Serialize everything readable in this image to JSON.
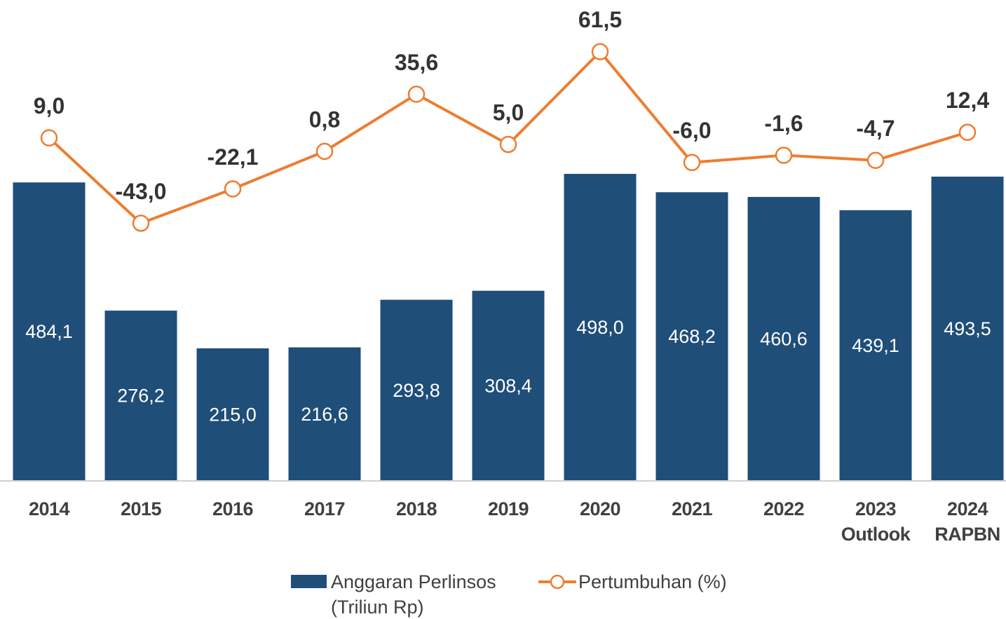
{
  "chart_data": {
    "type": "bar+line",
    "categories": [
      "2014",
      "2015",
      "2016",
      "2017",
      "2018",
      "2019",
      "2020",
      "2021",
      "2022",
      "2023 Outlook",
      "2024 RAPBN"
    ],
    "series": [
      {
        "name": "Anggaran Perlinsos (Triliun Rp)",
        "type": "bar",
        "color": "#1f4e79",
        "values": [
          484.1,
          276.2,
          215.0,
          216.6,
          293.8,
          308.4,
          498.0,
          468.2,
          460.6,
          439.1,
          493.5
        ],
        "value_labels": [
          "484,1",
          "276,2",
          "215,0",
          "216,6",
          "293,8",
          "308,4",
          "498,0",
          "468,2",
          "460,6",
          "439,1",
          "493,5"
        ]
      },
      {
        "name": "Pertumbuhan (%)",
        "type": "line",
        "axis": "y2",
        "color": "#ed7d31",
        "values": [
          9.0,
          -43.0,
          -22.1,
          0.8,
          35.6,
          5.0,
          61.5,
          -6.0,
          -1.6,
          -4.7,
          12.4
        ],
        "value_labels": [
          "9,0",
          "-43,0",
          "-22,1",
          "0,8",
          "35,6",
          "5,0",
          "61,5",
          "-6,0",
          "-1,6",
          "-4,7",
          "12,4"
        ]
      }
    ],
    "ylim": [
      0,
      780
    ],
    "y2lim": [
      -200,
      93
    ],
    "legend": "bottom"
  }
}
